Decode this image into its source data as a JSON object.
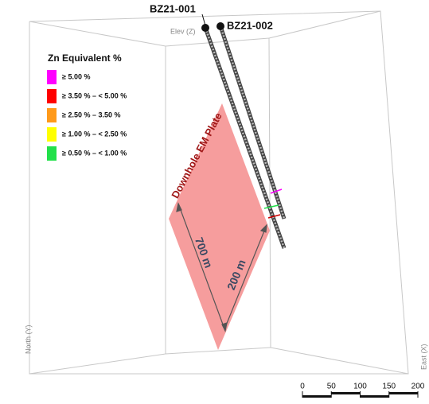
{
  "holes": [
    {
      "label": "BZ21-001"
    },
    {
      "label": "BZ21-002"
    }
  ],
  "axes": {
    "z": "Elev (Z)",
    "y": "North (Y)",
    "x": "East (X)"
  },
  "legend": {
    "title": "Zn Equivalent %",
    "items": [
      {
        "label": "≥ 5.00 %",
        "color": "#ff00ff"
      },
      {
        "label": "≥ 3.50 % – < 5.00 %",
        "color": "#ff0000"
      },
      {
        "label": "≥ 2.50 % – 3.50 %",
        "color": "#ff9a1a"
      },
      {
        "label": "≥ 1.00 % – < 2.50 %",
        "color": "#ffff00"
      },
      {
        "label": "≥ 0.50 % – < 1.00 %",
        "color": "#22e04a"
      }
    ]
  },
  "plate": {
    "label": "Downhole EM Plate",
    "length": "700 m",
    "width": "200 m"
  },
  "scale_bar": [
    0,
    50,
    100,
    150,
    200
  ]
}
